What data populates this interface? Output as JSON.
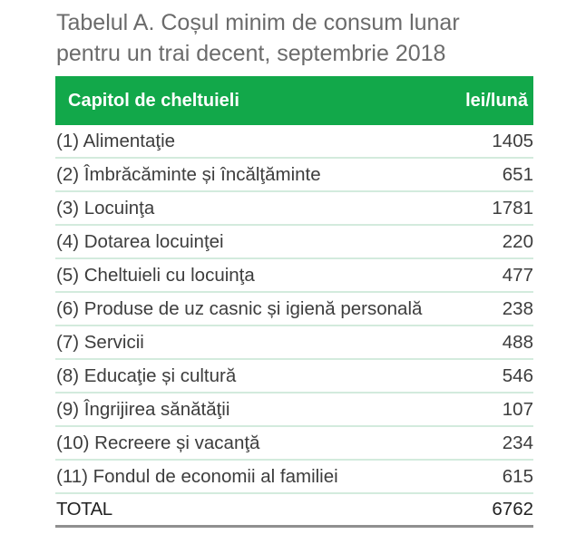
{
  "title": {
    "line1": "Tabelul A. Coșul minim de consum lunar",
    "line2": "pentru un trai decent, septembrie 2018"
  },
  "table": {
    "header": {
      "label": "Capitol de cheltuieli",
      "unit": "lei/lună",
      "bg_color": "#12a84a"
    },
    "rows": [
      {
        "label": "(1) Alimentaţie",
        "value": "1405"
      },
      {
        "label": "(2) Îmbrăcăminte și încălţăminte",
        "value": "651"
      },
      {
        "label": "(3) Locuinţa",
        "value": "1781"
      },
      {
        "label": "(4) Dotarea locuinţei",
        "value": "220"
      },
      {
        "label": "(5) Cheltuieli cu locuinţa",
        "value": "477"
      },
      {
        "label": "(6) Produse de uz casnic și igienă personală",
        "value": "238"
      },
      {
        "label": "(7) Servicii",
        "value": "488"
      },
      {
        "label": "(8) Educaţie și cultură",
        "value": "546"
      },
      {
        "label": "(9) Îngrijirea sănătăţii",
        "value": "107"
      },
      {
        "label": "(10) Recreere și vacanţă",
        "value": "234"
      },
      {
        "label": "(11) Fondul de economii al familiei",
        "value": "615"
      }
    ],
    "total": {
      "label": "TOTAL",
      "value": "6762"
    }
  }
}
